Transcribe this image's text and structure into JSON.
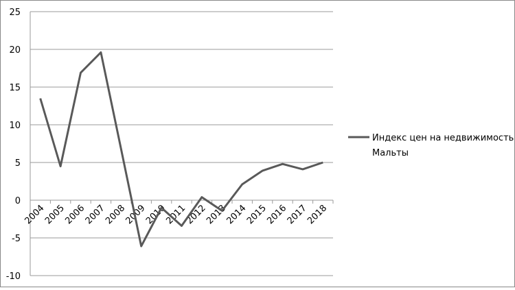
{
  "chart_data": {
    "type": "line",
    "categories": [
      "2004",
      "2005",
      "2006",
      "2007",
      "2008",
      "2009",
      "2010",
      "2011",
      "2012",
      "2013",
      "2014",
      "2015",
      "2016",
      "2017",
      "2018"
    ],
    "series": [
      {
        "name": "Индекс цен на недвижимость Мальты",
        "color": "#595959",
        "values": [
          13.5,
          4.5,
          16.9,
          19.6,
          6.8,
          -6.1,
          -1.0,
          -3.4,
          0.4,
          -1.4,
          2.1,
          3.9,
          4.8,
          4.1,
          5.0
        ]
      }
    ],
    "ylim": [
      -10,
      25
    ],
    "yticks": [
      -10,
      -5,
      0,
      5,
      10,
      15,
      20,
      25
    ],
    "grid": true,
    "legend": "right"
  }
}
